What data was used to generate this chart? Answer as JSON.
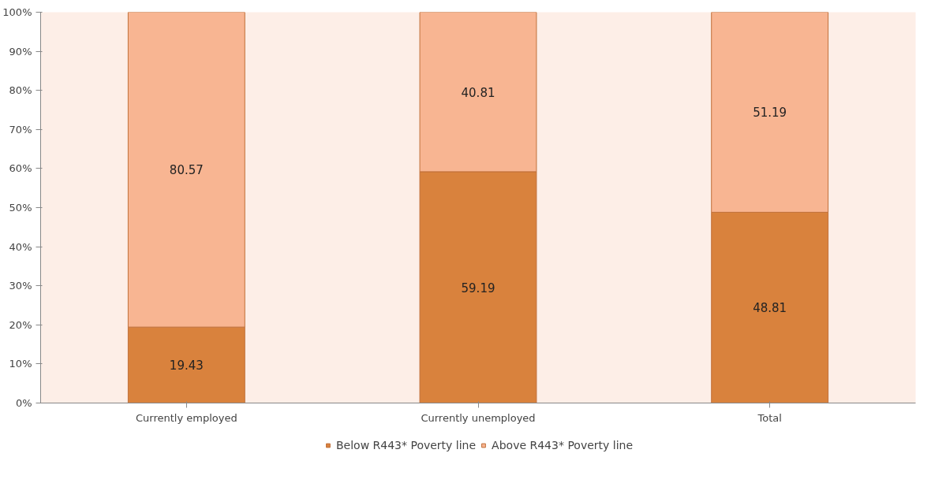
{
  "chart_data": {
    "type": "bar",
    "stacked": true,
    "categories": [
      "Currently employed",
      "Currently unemployed",
      "Total"
    ],
    "series": [
      {
        "name": "Below R443* Poverty line",
        "color": "#d9823d",
        "values": [
          19.43,
          59.19,
          48.81
        ]
      },
      {
        "name": "Above R443* Poverty line",
        "color": "#f8b592",
        "values": [
          80.57,
          40.81,
          51.19
        ]
      }
    ],
    "ylim": [
      0,
      100
    ],
    "yticks": [
      {
        "value": 0,
        "label": "0%"
      },
      {
        "value": 10,
        "label": "10%"
      },
      {
        "value": 20,
        "label": "20%"
      },
      {
        "value": 30,
        "label": "30%"
      },
      {
        "value": 40,
        "label": "40%"
      },
      {
        "value": 50,
        "label": "50%"
      },
      {
        "value": 60,
        "label": "60%"
      },
      {
        "value": 70,
        "label": "70%"
      },
      {
        "value": 80,
        "label": "80%"
      },
      {
        "value": 90,
        "label": "90%"
      },
      {
        "value": 100,
        "label": "100%"
      }
    ],
    "data_labels": true,
    "grid": false,
    "legend": "bottom"
  }
}
